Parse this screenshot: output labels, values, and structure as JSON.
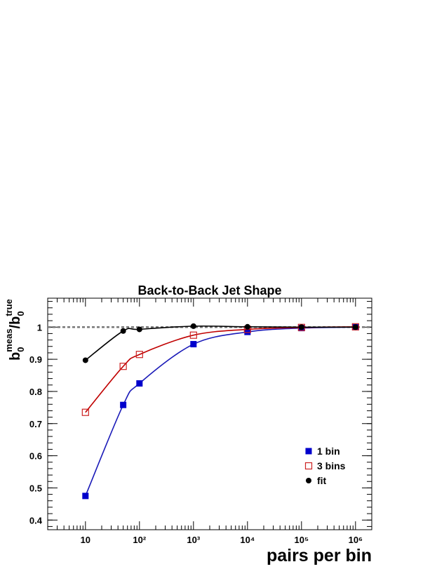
{
  "chart_data": {
    "type": "line",
    "title": "Back-to-Back Jet Shape",
    "xlabel": "pairs per bin",
    "ylabel": [
      {
        "text": "b",
        "pos": "base"
      },
      {
        "text": "meas",
        "pos": "sup"
      },
      {
        "text": "0",
        "pos": "sub"
      },
      {
        "text": "/b",
        "pos": "base"
      },
      {
        "text": "true",
        "pos": "sup"
      },
      {
        "text": "0",
        "pos": "sub"
      }
    ],
    "x": [
      10,
      50,
      100,
      1000,
      10000,
      100000,
      1000000
    ],
    "series": [
      {
        "name": "1 bin",
        "color": "#0000cc",
        "line_color": "#1a1ab8",
        "marker": "square",
        "values": [
          0.475,
          0.758,
          0.825,
          0.947,
          0.985,
          0.997,
          1.0
        ]
      },
      {
        "name": "3 bins",
        "color": "#cc2222",
        "line_color": "#c00000",
        "marker": "open-square",
        "values": [
          0.735,
          0.878,
          0.915,
          0.975,
          0.993,
          0.999,
          1.001
        ]
      },
      {
        "name": "fit",
        "color": "#000000",
        "line_color": "#000000",
        "marker": "circle",
        "values": [
          0.897,
          0.988,
          0.993,
          1.003,
          1.001,
          1.0,
          1.0
        ]
      }
    ],
    "reference_line": 1,
    "smooth": true,
    "xscale": "log",
    "xlim": [
      2,
      2000000
    ],
    "xticks": [
      10,
      {
        "value": 100,
        "label": "10²"
      },
      {
        "value": 1000,
        "label": "10³"
      },
      {
        "value": 10000,
        "label": "10⁴"
      },
      {
        "value": 100000,
        "label": "10⁵"
      },
      {
        "value": 1000000,
        "label": "10⁶"
      }
    ],
    "ylim": [
      0.37,
      1.09
    ],
    "yticks": [
      0.4,
      0.5,
      0.6,
      0.7,
      0.8,
      0.9,
      1
    ],
    "legend": "lower right"
  }
}
